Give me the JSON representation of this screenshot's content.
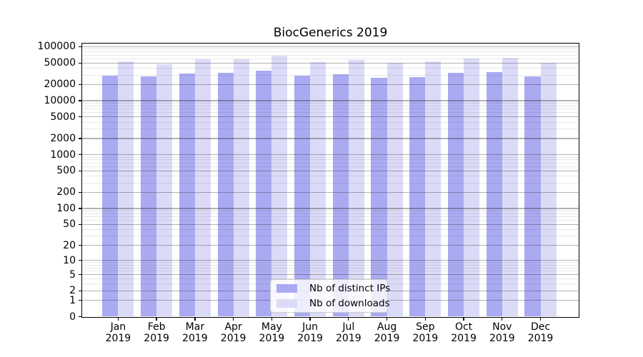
{
  "chart_data": {
    "type": "bar",
    "title": "BiocGenerics 2019",
    "categories": [
      "Jan",
      "Feb",
      "Mar",
      "Apr",
      "May",
      "Jun",
      "Jul",
      "Aug",
      "Sep",
      "Oct",
      "Nov",
      "Dec"
    ],
    "x_year_label": "2019",
    "series": [
      {
        "name": "Nb of distinct IPs",
        "color": "#aaaaf2",
        "values": [
          29500,
          28000,
          32000,
          32500,
          36000,
          29000,
          30500,
          26500,
          27500,
          33000,
          34000,
          28000
        ]
      },
      {
        "name": "Nb of downloads",
        "color": "#dbdbf8",
        "values": [
          53500,
          47500,
          58500,
          59000,
          67500,
          52500,
          57000,
          50500,
          53500,
          61000,
          62500,
          51000
        ]
      }
    ],
    "xlabel": "",
    "ylabel": "",
    "y_scale": "log10(1+v)",
    "y_ticks": [
      0,
      1,
      2,
      5,
      10,
      20,
      50,
      100,
      200,
      500,
      1000,
      2000,
      5000,
      10000,
      20000,
      50000,
      100000
    ],
    "ylim": [
      0,
      115000
    ],
    "grid": "major and minor horizontal gridlines drawn over bars",
    "legend_position": "lower center",
    "colors": {
      "major_gridline": "#a8a8a8",
      "minor_gridline": "#e9e9e9",
      "axis": "#000000",
      "legend_border": "#cccccc"
    }
  }
}
